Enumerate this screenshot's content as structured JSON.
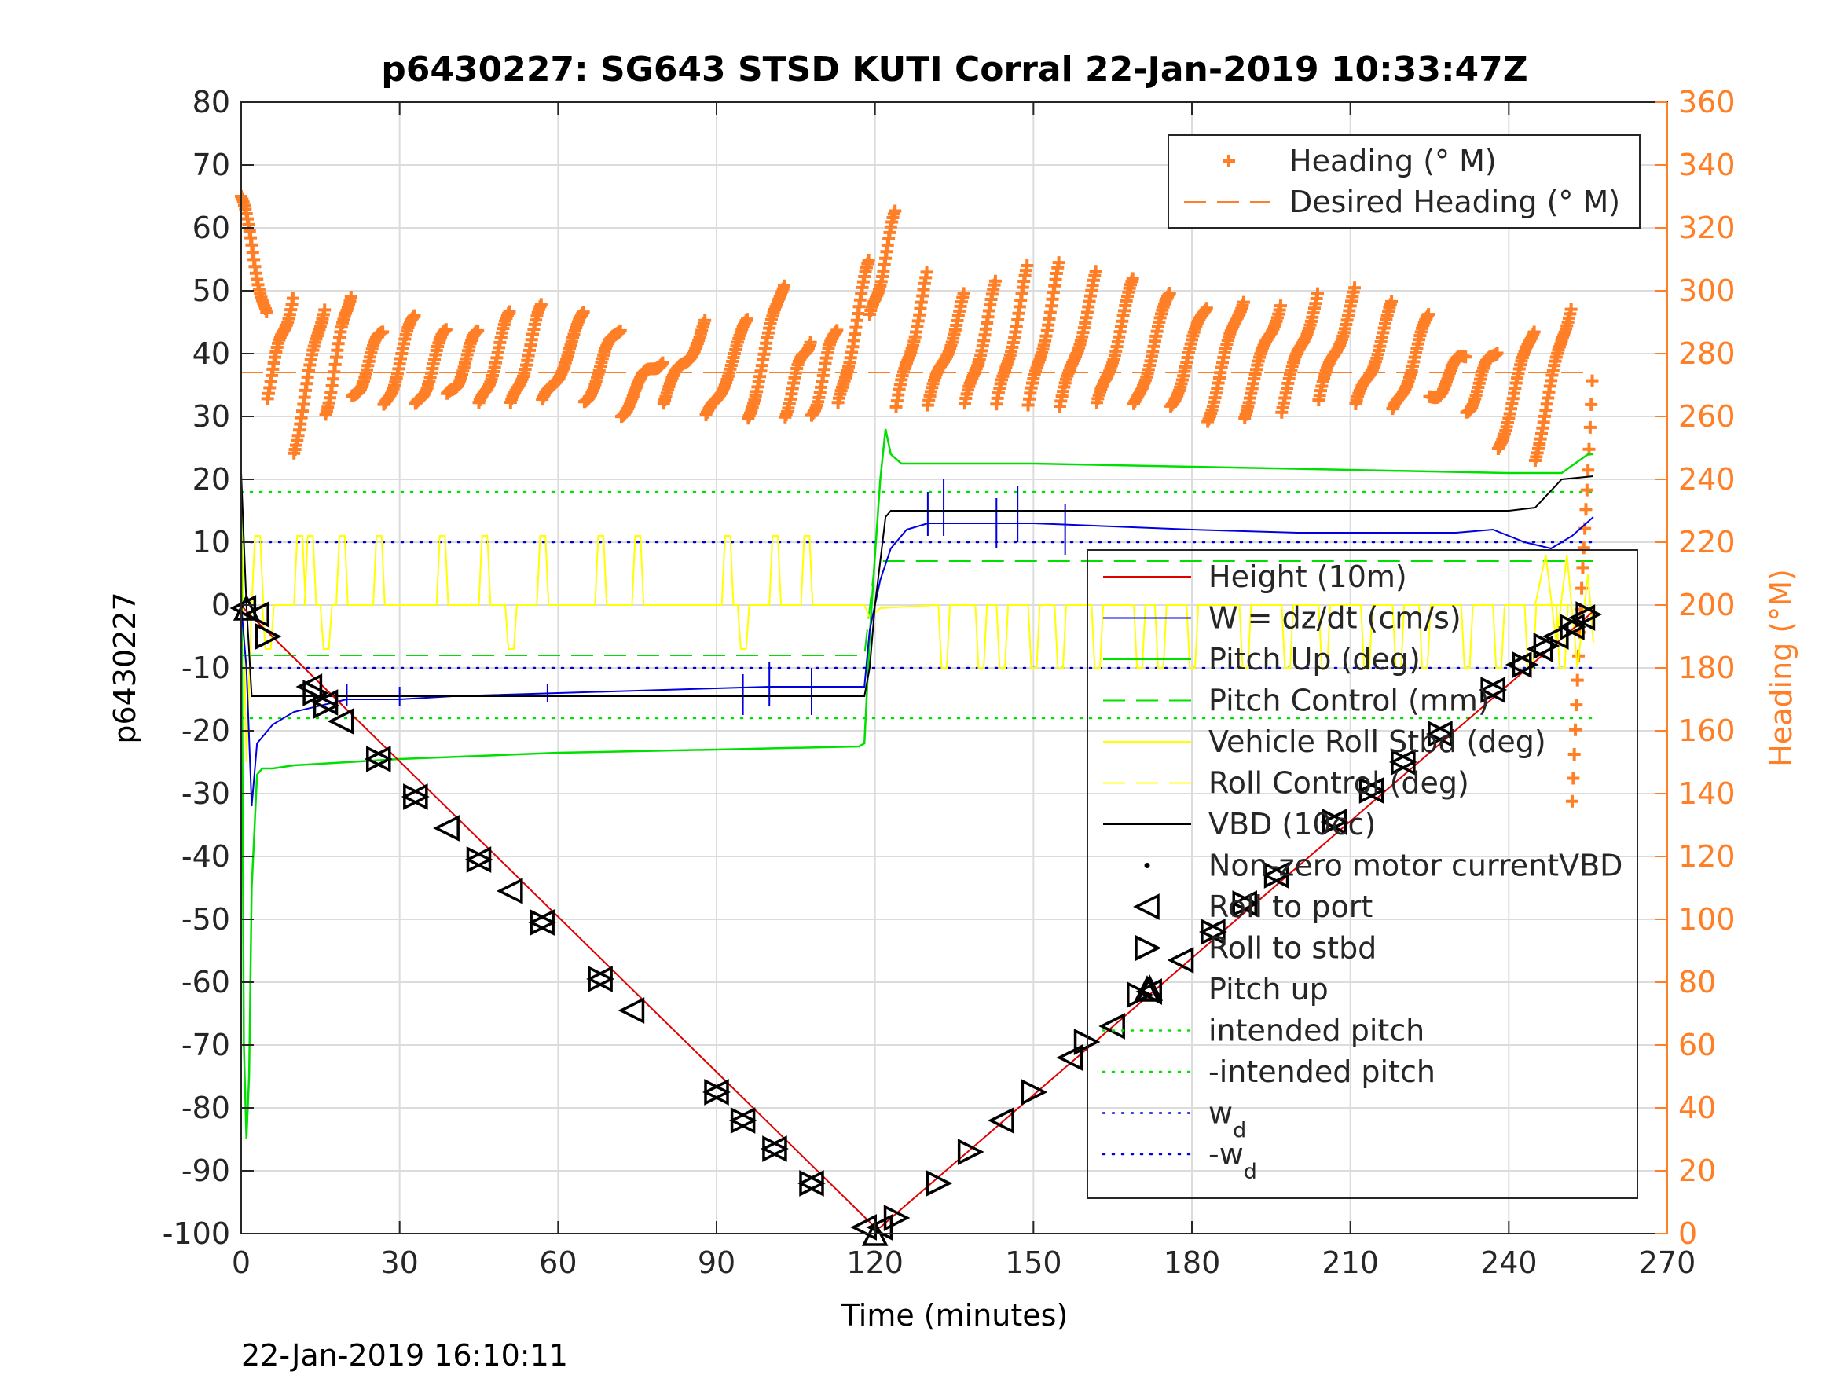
{
  "figure": {
    "title": "p6430227: SG643 STSD KUTI Corral 22-Jan-2019 10:33:47Z",
    "timestamp": "22-Jan-2019 16:10:11",
    "colors": {
      "heading": "#ff7f27",
      "height": "#e00000",
      "w": "#0000e0",
      "pitch": "#00e000",
      "roll": "#ffff00",
      "vbd": "#000000"
    }
  },
  "chart_data": {
    "type": "line",
    "xlabel": "Time (minutes)",
    "ylabel_left": "p6430227",
    "ylabel_right": "Heading (°M)",
    "xlim": [
      0,
      270
    ],
    "ylim_left": [
      -100,
      80
    ],
    "ylim_right": [
      0,
      360
    ],
    "xticks": [
      0,
      30,
      60,
      90,
      120,
      150,
      180,
      210,
      240,
      270
    ],
    "yticks_left": [
      80,
      70,
      60,
      50,
      40,
      30,
      20,
      10,
      0,
      -10,
      -20,
      -30,
      -40,
      -50,
      -60,
      -70,
      -80,
      -90,
      -100
    ],
    "yticks_right": [
      360,
      340,
      320,
      300,
      280,
      260,
      240,
      220,
      200,
      180,
      160,
      140,
      120,
      100,
      80,
      60,
      40,
      20,
      0
    ],
    "grid": true,
    "legends": [
      {
        "placement": "top-right",
        "entries": [
          {
            "label": "Heading (° M)",
            "style": "plus",
            "color": "#ff7f27"
          },
          {
            "label": "Desired Heading (° M)",
            "style": "dash",
            "color": "#ff7f27"
          }
        ]
      },
      {
        "placement": "lower-right",
        "entries": [
          {
            "label": "Height (10m)",
            "style": "solid",
            "color": "#e00000"
          },
          {
            "label": "W = dz/dt (cm/s)",
            "style": "solid",
            "color": "#0000e0"
          },
          {
            "label": "Pitch Up (deg)",
            "style": "solid",
            "color": "#00e000"
          },
          {
            "label": "Pitch Control (mm)",
            "style": "dash",
            "color": "#00e000"
          },
          {
            "label": "Vehicle Roll Stbd (deg)",
            "style": "solid",
            "color": "#ffff00"
          },
          {
            "label": "Roll Control (deg)",
            "style": "dash",
            "color": "#ffff00"
          },
          {
            "label": "VBD (10cc)",
            "style": "solid",
            "color": "#000000"
          },
          {
            "label": "Non-zero motor currentVBD",
            "style": "dot",
            "color": "#000000"
          },
          {
            "label": "Roll to port",
            "style": "triangle-left",
            "color": "#000000"
          },
          {
            "label": "Roll to stbd",
            "style": "triangle-right",
            "color": "#000000"
          },
          {
            "label": "Pitch up",
            "style": "triangle-up",
            "color": "#000000"
          },
          {
            "label": "intended pitch",
            "style": "dotted",
            "color": "#00e000"
          },
          {
            "label": "-intended pitch",
            "style": "dotted",
            "color": "#00e000"
          },
          {
            "label": "w",
            "sub": "d",
            "style": "dotted",
            "color": "#0000e0"
          },
          {
            "label": "-w",
            "sub": "d",
            "style": "dotted",
            "color": "#0000e0"
          }
        ]
      }
    ],
    "series": [
      {
        "name": "Height (10m)",
        "axis": "left",
        "color": "#e00000",
        "x": [
          0,
          1,
          120,
          121,
          256
        ],
        "y": [
          0,
          -1,
          -99,
          -99,
          -1
        ]
      },
      {
        "name": "W = dz/dt (cm/s)",
        "axis": "left",
        "color": "#0000e0",
        "x": [
          0,
          1,
          2,
          3,
          6,
          10,
          20,
          30,
          40,
          60,
          80,
          100,
          118,
          119,
          121,
          123,
          126,
          130,
          150,
          180,
          200,
          230,
          237,
          243,
          248,
          252,
          256
        ],
        "y": [
          0,
          -10,
          -32,
          -22,
          -19,
          -17,
          -15,
          -15,
          -14.5,
          -14,
          -13.5,
          -13,
          -13,
          -4,
          4,
          9,
          12,
          13,
          13,
          12,
          11.5,
          11.5,
          12,
          10,
          9,
          11,
          14
        ]
      },
      {
        "name": "Pitch Up (deg)",
        "axis": "left",
        "color": "#00e000",
        "x": [
          0,
          0.5,
          1,
          1.5,
          2,
          3,
          4,
          6,
          10,
          30,
          60,
          90,
          117,
          118,
          119,
          120,
          121,
          122,
          123,
          125,
          150,
          180,
          210,
          240,
          250,
          255,
          256
        ],
        "y": [
          15,
          -70,
          -85,
          -75,
          -45,
          -27,
          -26,
          -26,
          -25.5,
          -24.5,
          -23.5,
          -23,
          -22.5,
          -22,
          -5,
          8,
          20,
          28,
          24,
          22.5,
          22.5,
          22,
          21.5,
          21,
          21,
          24,
          24
        ]
      },
      {
        "name": "Pitch Control (mm)",
        "axis": "left",
        "color": "#00e000",
        "dash": true,
        "x": [
          0,
          118,
          120,
          256
        ],
        "y": [
          -8,
          -8,
          7,
          7
        ]
      },
      {
        "name": "VBD (10cc)",
        "axis": "left",
        "color": "#000000",
        "x": [
          0,
          1,
          2,
          118,
          119,
          120,
          122,
          123,
          240,
          245,
          250,
          256
        ],
        "y": [
          21,
          0,
          -14.5,
          -14.5,
          -10,
          0,
          14,
          15,
          15,
          15.5,
          20,
          20.5
        ]
      },
      {
        "name": "intended pitch",
        "axis": "left",
        "color": "#00e000",
        "dotted": true,
        "x": [
          0,
          256
        ],
        "y": [
          18,
          18
        ]
      },
      {
        "name": "-intended pitch",
        "axis": "left",
        "color": "#00e000",
        "dotted": true,
        "x": [
          0,
          256
        ],
        "y": [
          -18,
          -18
        ]
      },
      {
        "name": "w_d",
        "axis": "left",
        "color": "#0000e0",
        "dotted": true,
        "x": [
          0,
          256
        ],
        "y": [
          10,
          10
        ]
      },
      {
        "name": "-w_d",
        "axis": "left",
        "color": "#0000e0",
        "dotted": true,
        "x": [
          0,
          256
        ],
        "y": [
          -10,
          -10
        ]
      },
      {
        "name": "Desired Heading (° M)",
        "axis": "right",
        "color": "#ff7f27",
        "dash": true,
        "x": [
          0,
          256
        ],
        "y": [
          274,
          274
        ]
      },
      {
        "name": "Vehicle Roll Stbd (deg)",
        "axis": "left",
        "color": "#ffff00",
        "baseline_descent": 0,
        "baseline_ascent": 0,
        "spikes_descent": [
          3,
          11,
          13,
          19,
          26,
          38,
          46,
          57,
          68,
          75,
          92,
          101,
          107
        ],
        "spikes_descent_down": [
          5,
          16,
          51,
          95
        ],
        "spikes_ascent": [
          133,
          140,
          144,
          150,
          155,
          162,
          170,
          174,
          180,
          190,
          198,
          205,
          213,
          219,
          224,
          232,
          238,
          244,
          250
        ],
        "spike_high": 11,
        "spike_low": -10
      },
      {
        "name": "Heading (° M)",
        "axis": "right",
        "color": "#ff7f27",
        "marker": "plus",
        "start_x": 0,
        "end_x": 256,
        "cycles": [
          [
            0,
            330,
            5,
            290
          ],
          [
            5,
            268,
            10,
            300
          ],
          [
            10,
            250,
            16,
            298
          ],
          [
            16,
            262,
            21,
            302
          ],
          [
            21,
            265,
            27,
            288
          ],
          [
            27,
            262,
            33,
            293
          ],
          [
            33,
            262,
            39,
            288
          ],
          [
            39,
            265,
            45,
            287
          ],
          [
            45,
            262,
            51,
            293
          ],
          [
            51,
            262,
            57,
            295
          ],
          [
            57,
            263,
            65,
            292
          ],
          [
            65,
            265,
            72,
            290
          ],
          [
            72,
            262,
            80,
            280
          ],
          [
            80,
            265,
            88,
            290
          ],
          [
            88,
            258,
            96,
            290
          ],
          [
            96,
            260,
            103,
            305
          ],
          [
            103,
            262,
            108,
            287
          ],
          [
            108,
            260,
            113,
            290
          ],
          [
            113,
            262,
            119,
            310
          ],
          [
            119,
            290,
            124,
            325
          ],
          [
            124,
            262,
            130,
            305
          ],
          [
            130,
            263,
            137,
            298
          ],
          [
            137,
            262,
            143,
            302
          ],
          [
            143,
            262,
            149,
            307
          ],
          [
            149,
            262,
            155,
            308
          ],
          [
            155,
            262,
            162,
            305
          ],
          [
            162,
            262,
            169,
            303
          ],
          [
            169,
            262,
            176,
            300
          ],
          [
            176,
            263,
            183,
            297
          ],
          [
            183,
            260,
            190,
            300
          ],
          [
            190,
            262,
            197,
            298
          ],
          [
            197,
            263,
            204,
            300
          ],
          [
            204,
            265,
            211,
            300
          ],
          [
            211,
            262,
            218,
            295
          ],
          [
            218,
            260,
            225,
            292
          ],
          [
            225,
            265,
            232,
            280
          ],
          [
            232,
            262,
            238,
            283
          ],
          [
            238,
            250,
            245,
            290
          ],
          [
            245,
            248,
            252,
            298
          ],
          [
            252,
            140,
            256,
            280
          ]
        ]
      },
      {
        "name": "Roll to port",
        "axis": "left",
        "marker": "triangle-left",
        "x": [
          0.5,
          3,
          13,
          16,
          19,
          26,
          33,
          39,
          45,
          51,
          57,
          68,
          74,
          90,
          95,
          101,
          108,
          118,
          121,
          144,
          157,
          165,
          172,
          178,
          184,
          190,
          196,
          207,
          214,
          220,
          227,
          237,
          242,
          246,
          249,
          252,
          254
        ],
        "y": [
          -0.5,
          -1.5,
          -13,
          -15.5,
          -18.5,
          -24.5,
          -30.5,
          -35.5,
          -40.5,
          -45.5,
          -50.5,
          -59.5,
          -64.5,
          -77.5,
          -82,
          -86.5,
          -92,
          -99,
          -99,
          -82,
          -72,
          -67,
          -61.5,
          -56.5,
          -52,
          -47.5,
          -43,
          -34.5,
          -29.5,
          -25,
          -20.5,
          -13.5,
          -9.5,
          -7,
          -5,
          -3.5,
          -2
        ]
      },
      {
        "name": "Roll to stbd",
        "axis": "left",
        "marker": "triangle-right",
        "x": [
          5,
          14,
          16,
          26,
          33,
          45,
          57,
          68,
          90,
          95,
          101,
          108,
          124,
          132,
          138,
          150,
          160,
          170,
          184,
          190,
          196,
          207,
          214,
          220,
          227,
          237,
          243,
          247,
          252,
          255
        ],
        "y": [
          -5,
          -14,
          -16,
          -24.5,
          -30.5,
          -40.5,
          -50.5,
          -59.5,
          -77.5,
          -82,
          -86.5,
          -92,
          -97.5,
          -92,
          -87,
          -77.5,
          -69.5,
          -62,
          -52,
          -47.5,
          -43,
          -34.5,
          -29.5,
          -25,
          -20.5,
          -13.5,
          -9.5,
          -6.5,
          -3.5,
          -1.5
        ]
      },
      {
        "name": "Pitch up",
        "axis": "left",
        "marker": "triangle-up",
        "x": [
          1,
          120,
          172
        ],
        "y": [
          -0.5,
          -100,
          -61
        ]
      }
    ]
  }
}
